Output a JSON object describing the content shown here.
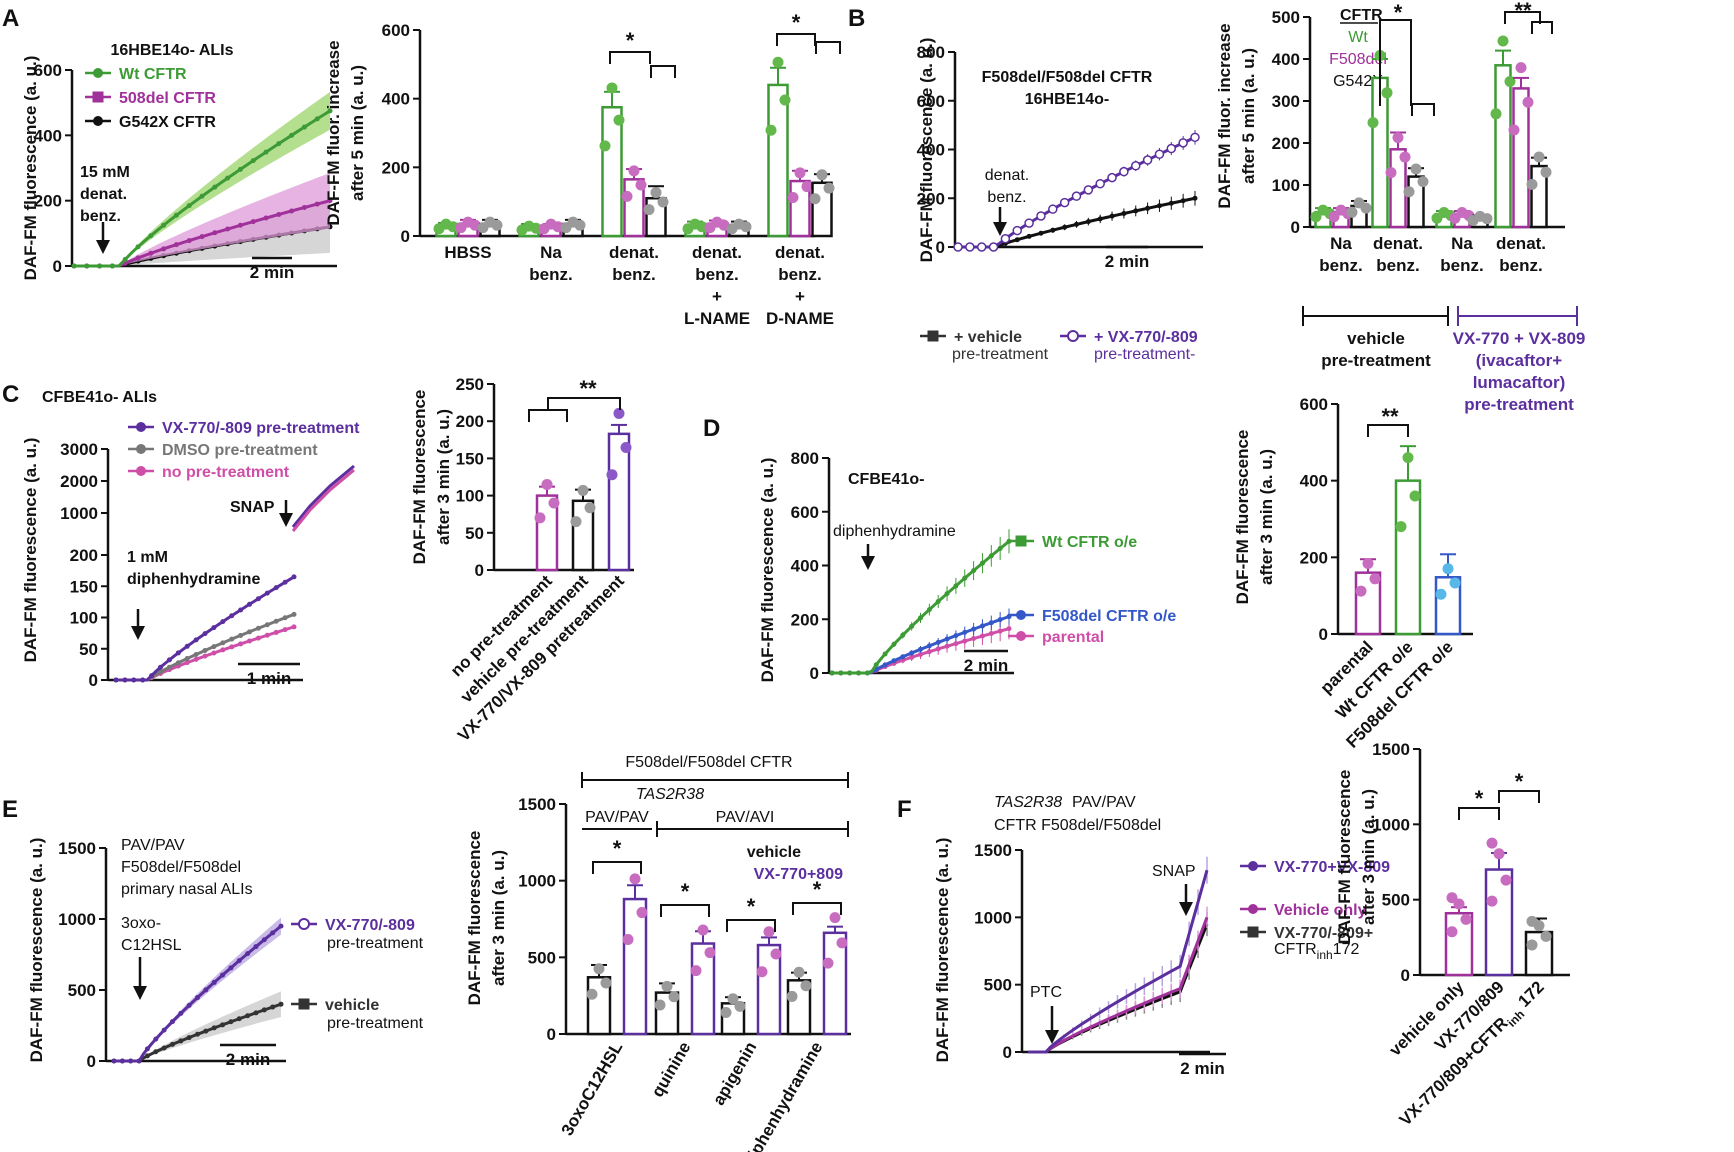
{
  "colors": {
    "wt": "#3d9b35",
    "wt_band": "#9bd46a",
    "f508": "#a0309a",
    "f508_band": "#de9ad8",
    "g542": "#111111",
    "grey": "#8a8a8a",
    "grey_band": "#c8c8c8",
    "vx": "#5b2f9e",
    "vx_band": "#b7a4e0",
    "dmso": "#777777",
    "pink": "#cf4fa8",
    "fblue": "#3558c8",
    "sky": "#57b8e8",
    "dot_grey": "#9a9a9a",
    "dot_green": "#62b84a",
    "dot_pink": "#c86cc0",
    "dot_purple": "#8c58c8"
  },
  "panel_labels": {
    "a": "A",
    "b": "B",
    "c": "C",
    "d": "D",
    "e": "E",
    "f": "F"
  },
  "chart_data": [
    {
      "id": "A1",
      "type": "line",
      "title": "16HBE14o- ALIs",
      "ylabel": "DAF-FM fluorescence (a. u.)",
      "ylim": [
        0,
        600
      ],
      "yticks": [
        "0",
        "200",
        "400",
        "600"
      ],
      "scale_bar": "2 min",
      "annotation": [
        "15 mM",
        "denat.",
        "benz."
      ],
      "series": [
        {
          "name": "Wt CFTR",
          "final": 475,
          "err": 58,
          "color": "wt",
          "band": "wt_band"
        },
        {
          "name": "508del CFTR",
          "final": 200,
          "err": 85,
          "color": "f508",
          "band": "f508_band"
        },
        {
          "name": "G542X CFTR",
          "final": 120,
          "err": 80,
          "color": "g542",
          "band": "grey_band"
        }
      ]
    },
    {
      "id": "A2",
      "type": "bar",
      "ylabel": [
        "DAF-FM fluor. increase",
        "after 5 min (a. u.)"
      ],
      "ylim": [
        0,
        600
      ],
      "yticks": [
        "0",
        "200",
        "400",
        "600"
      ],
      "groups": [
        {
          "label": [
            "HBSS"
          ],
          "values": [
            30,
            35,
            35
          ],
          "errors": [
            8,
            12,
            12
          ]
        },
        {
          "label": [
            "Na",
            "benz."
          ],
          "values": [
            25,
            30,
            35
          ],
          "errors": [
            10,
            5,
            12
          ]
        },
        {
          "label": [
            "denat.",
            "benz."
          ],
          "values": [
            375,
            165,
            110
          ],
          "errors": [
            45,
            30,
            35
          ]
        },
        {
          "label": [
            "denat.",
            "benz.",
            "+",
            "L-NAME"
          ],
          "values": [
            30,
            35,
            30
          ],
          "errors": [
            12,
            10,
            12
          ]
        },
        {
          "label": [
            "denat.",
            "benz.",
            "+",
            "D-NAME"
          ],
          "values": [
            440,
            160,
            155
          ],
          "errors": [
            50,
            30,
            25
          ]
        }
      ],
      "series": [
        "Wt",
        "F508del",
        "G542X"
      ],
      "sig": [
        "*",
        "*"
      ]
    },
    {
      "id": "B1",
      "type": "line",
      "title": [
        "F508del/F508del CFTR",
        "16HBE14o-"
      ],
      "ylabel": "DAF-FM fluorescence (a. u.)",
      "ylim": [
        0,
        800
      ],
      "yticks": [
        "0",
        "200",
        "400",
        "600",
        "800"
      ],
      "scale_bar": "2 min",
      "annotation": [
        "denat.",
        "benz."
      ],
      "series": [
        {
          "name": "+ vehicle",
          "name2": "pre-treatment",
          "final": 200,
          "err": 30,
          "color": "g542"
        },
        {
          "name": "+ VX-770/-809",
          "name2": "pre-treatment-",
          "final": 450,
          "err": 30,
          "color": "vx"
        }
      ]
    },
    {
      "id": "B2",
      "type": "bar",
      "ylabel": [
        "DAF-FM fluor. increase",
        "after 5 min (a. u.)"
      ],
      "ylim": [
        0,
        500
      ],
      "yticks": [
        "0",
        "100",
        "200",
        "300",
        "400",
        "500"
      ],
      "legend_title": "CFTR",
      "legend": [
        "Wt",
        "F508del",
        "G542X"
      ],
      "groups": [
        {
          "label": [
            "Na",
            "benz."
          ],
          "values": [
            35,
            35,
            50
          ],
          "errors": [
            10,
            10,
            12
          ]
        },
        {
          "label": [
            "denat.",
            "benz."
          ],
          "values": [
            355,
            185,
            120
          ],
          "errors": [
            45,
            40,
            20
          ]
        },
        {
          "label": [
            "Na",
            "benz."
          ],
          "values": [
            30,
            30,
            22
          ],
          "errors": [
            8,
            8,
            5
          ]
        },
        {
          "label": [
            "denat.",
            "benz."
          ],
          "values": [
            385,
            330,
            145
          ],
          "errors": [
            35,
            25,
            20
          ]
        }
      ],
      "brackets": [
        [
          "vehicle",
          "pre-treatment"
        ],
        [
          "VX-770 + VX-809",
          "(ivacaftor+",
          "lumacaftor)",
          "pre-treatment"
        ]
      ],
      "sig": [
        "*",
        "**"
      ]
    },
    {
      "id": "C1",
      "type": "line",
      "title": "CFBE41o- ALIs",
      "ylabel": "DAF-FM fluorescence (a. u.)",
      "yticks_low": [
        "0",
        "50",
        "100",
        "150",
        "200"
      ],
      "yticks_high": [
        "1000",
        "2000",
        "3000"
      ],
      "scale_bar": "1 min",
      "annotation": [
        "1 mM",
        "diphenhydramine"
      ],
      "annotation2": "SNAP",
      "series": [
        {
          "name": "VX-770/-809 pre-treatment",
          "final": 165,
          "color": "vx"
        },
        {
          "name": "DMSO pre-treatment",
          "final": 105,
          "color": "dmso"
        },
        {
          "name": "no pre-treatment",
          "final": 85,
          "color": "pink"
        }
      ]
    },
    {
      "id": "C2",
      "type": "bar",
      "ylabel": [
        "DAF-FM fluorescence",
        "after 3 min (a. u.)"
      ],
      "ylim": [
        0,
        250
      ],
      "yticks": [
        "0",
        "50",
        "100",
        "150",
        "200",
        "250"
      ],
      "categories": [
        "no pre-treatment",
        "vehicle pre-treatment",
        "VX-770/VX-809 pretreatment"
      ],
      "values": [
        100,
        93,
        183
      ],
      "errors": [
        12,
        15,
        12
      ],
      "sig": "**"
    },
    {
      "id": "D1",
      "type": "line",
      "title": "CFBE41o-",
      "ylabel": "DAF-FM fluorescence (a. u.)",
      "ylim": [
        0,
        800
      ],
      "yticks": [
        "0",
        "200",
        "400",
        "600",
        "800"
      ],
      "scale_bar": "2 min",
      "annotation": "diphenhydramine",
      "series": [
        {
          "name": "Wt CFTR o/e",
          "final": 490,
          "err": 45,
          "color": "wt"
        },
        {
          "name": "F508del CFTR o/e",
          "final": 210,
          "err": 30,
          "color": "fblue"
        },
        {
          "name": "parental",
          "final": 165,
          "err": 40,
          "color": "pink"
        }
      ]
    },
    {
      "id": "D2",
      "type": "bar",
      "ylabel": [
        "DAF-FM fluorescence",
        "after 3 min (a. u.)"
      ],
      "ylim": [
        0,
        600
      ],
      "yticks": [
        "0",
        "200",
        "400",
        "600"
      ],
      "categories": [
        "parental",
        "Wt CFTR o/e",
        "F508del CFTR o/e"
      ],
      "values": [
        160,
        400,
        148
      ],
      "errors": [
        35,
        90,
        60
      ],
      "sig": "**"
    },
    {
      "id": "E1",
      "type": "line",
      "title": [
        "PAV/PAV",
        "F508del/F508del",
        "primary nasal ALIs"
      ],
      "ylabel": "DAF-FM fluorescence (a. u.)",
      "ylim": [
        0,
        1500
      ],
      "yticks": [
        "0",
        "500",
        "1000",
        "1500"
      ],
      "scale_bar": "2 min",
      "annotation": [
        "3oxo-",
        "C12HSL"
      ],
      "series": [
        {
          "name": "VX-770/-809",
          "name2": "pre-treatment",
          "final": 950,
          "err": 60,
          "color": "vx"
        },
        {
          "name": "vehicle",
          "name2": "pre-treatment",
          "final": 400,
          "err": 90,
          "color": "g542"
        }
      ]
    },
    {
      "id": "E2",
      "type": "bar",
      "ylabel": [
        "DAF-FM fluorescence",
        "after 3 min (a. u.)"
      ],
      "ylim": [
        0,
        1500
      ],
      "yticks": [
        "0",
        "500",
        "1000",
        "1500"
      ],
      "header": "F508del/F508del CFTR",
      "gene": "TAS2R38",
      "genotypes": [
        "PAV/PAV",
        "PAV/AVI"
      ],
      "legend": [
        "vehicle",
        "VX-770+809"
      ],
      "categories": [
        "3oxoC12HSL",
        "quinine",
        "apigenin",
        "diphenhydramine"
      ],
      "series": [
        {
          "name": "vehicle",
          "values": [
            370,
            270,
            200,
            350
          ],
          "errors": [
            80,
            60,
            40,
            50
          ]
        },
        {
          "name": "VX-770+809",
          "values": [
            880,
            590,
            580,
            660
          ],
          "errors": [
            90,
            80,
            50,
            40
          ]
        }
      ],
      "sig": [
        "*",
        "*",
        "*",
        "*"
      ]
    },
    {
      "id": "F1",
      "type": "line",
      "title": [
        "TAS2R38 PAV/PAV",
        "CFTR F508del/F508del"
      ],
      "ylabel": "DAF-FM fluorescence (a. u.)",
      "ylim": [
        0,
        1500
      ],
      "yticks": [
        "0",
        "500",
        "1000",
        "1500"
      ],
      "scale_bar": "2 min",
      "annotation": "PTC",
      "annotation2": "SNAP",
      "series": [
        {
          "name": "VX-770+VX-809",
          "final": 1350,
          "err": 100,
          "color": "vx"
        },
        {
          "name": "Vehicle only",
          "final": 1000,
          "err": 80,
          "color": "f508"
        },
        {
          "name": "VX-770/-809+",
          "name2": "CFTR",
          "name2sub": "inh",
          "name2end": "172",
          "final": 950,
          "err": 90,
          "color": "g542"
        }
      ]
    },
    {
      "id": "F2",
      "type": "bar",
      "ylabel": [
        "DAF-FM fluorescence",
        "after 3 min (a. u.)"
      ],
      "ylim": [
        0,
        1500
      ],
      "yticks": [
        "0",
        "500",
        "1000",
        "1500"
      ],
      "categories": [
        "vehicle only",
        "VX-770/809",
        "VX-770/809+CFTR"
      ],
      "cat3_sub": "inh",
      "cat3_end": " 172",
      "values": [
        410,
        700,
        285
      ],
      "errors": [
        40,
        110,
        90
      ],
      "sig": [
        "*",
        "*"
      ]
    }
  ]
}
